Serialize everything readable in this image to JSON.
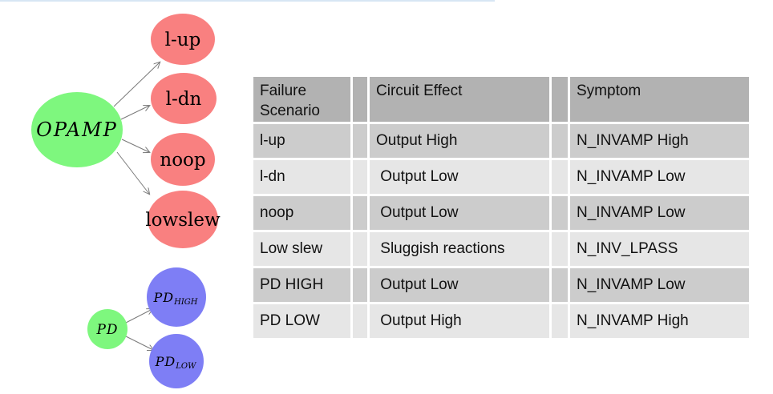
{
  "page": {
    "top_line_color": "#d7e6f4",
    "background": "#ffffff"
  },
  "diagram": {
    "arrow_color": "#7a7a7a",
    "opamp_group": {
      "root": {
        "label": "OPAMP",
        "color": "#7ef77e"
      },
      "children": [
        {
          "label": "l-up",
          "color": "#f98080"
        },
        {
          "label": "l-dn",
          "color": "#f98080"
        },
        {
          "label": "noop",
          "color": "#f98080"
        },
        {
          "label": "lowslew",
          "color": "#f98080"
        }
      ]
    },
    "pd_group": {
      "root": {
        "label": "PD",
        "color": "#7ef77e"
      },
      "children": [
        {
          "label": "PD",
          "subscript": "HIGH",
          "color": "#7e7ef5"
        },
        {
          "label": "PD",
          "subscript": "LOW",
          "color": "#7e7ef5"
        }
      ]
    }
  },
  "table": {
    "headers": [
      "Failure Scenario",
      "Circuit Effect",
      "Symptom"
    ],
    "rows": [
      {
        "scenario": "l-up",
        "effect": "Output High",
        "symptom": "N_INVAMP High"
      },
      {
        "scenario": "l-dn",
        "effect": " Output Low",
        "symptom": "N_INVAMP Low"
      },
      {
        "scenario": "noop",
        "effect": " Output Low",
        "symptom": "N_INVAMP Low"
      },
      {
        "scenario": "Low slew",
        "effect": " Sluggish reactions",
        "symptom": "N_INV_LPASS"
      },
      {
        "scenario": "PD HIGH",
        "effect": " Output Low",
        "symptom": "N_INVAMP Low"
      },
      {
        "scenario": "PD LOW",
        "effect": " Output High",
        "symptom": "N_INVAMP High"
      }
    ],
    "colors": {
      "header_bg": "#b2b2b2",
      "row_dark": "#cccccc",
      "row_light": "#e6e6e6"
    }
  }
}
